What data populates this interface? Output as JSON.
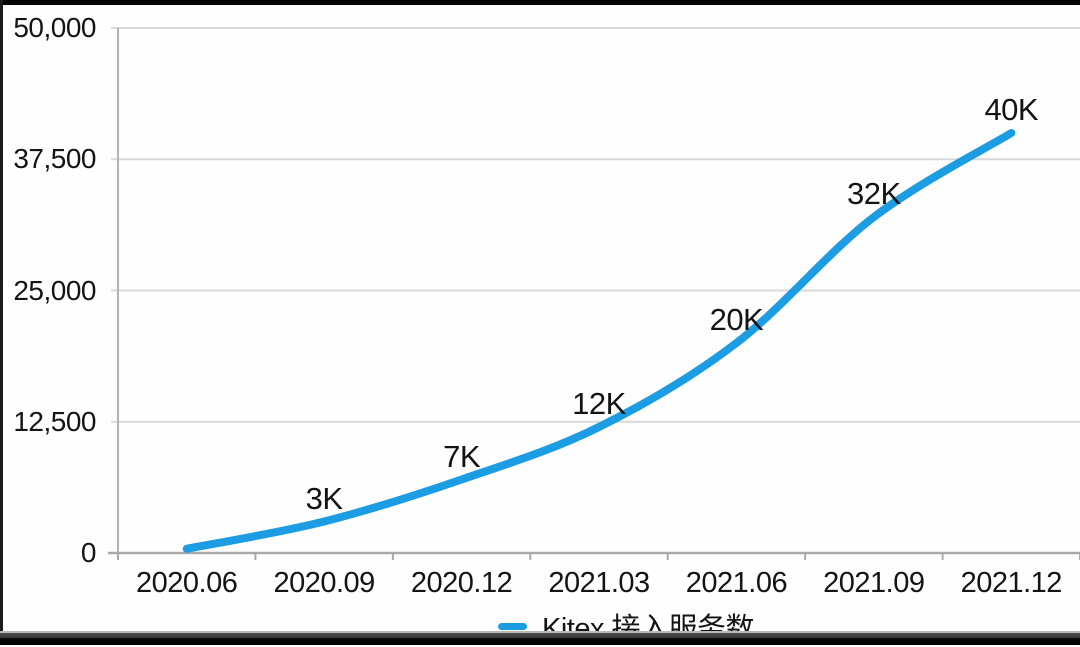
{
  "chart_data": {
    "type": "line",
    "title": "",
    "categories": [
      "2020.06",
      "2020.09",
      "2020.12",
      "2021.03",
      "2021.06",
      "2021.09",
      "2021.12"
    ],
    "series": [
      {
        "name": "Kitex 接入服务数",
        "values": [
          400,
          3000,
          7000,
          12000,
          20000,
          32000,
          40000
        ],
        "point_labels": [
          "",
          "3K",
          "7K",
          "12K",
          "20K",
          "32K",
          "40K"
        ],
        "color": "#1b9ce3"
      }
    ],
    "xlabel": "",
    "ylabel": "",
    "ylim": [
      0,
      50000
    ],
    "yticks": [
      0,
      12500,
      25000,
      37500,
      50000
    ],
    "ytick_labels": [
      "0",
      "12,500",
      "25,000",
      "37,500",
      "50,000"
    ],
    "grid": true,
    "legend_position": "bottom"
  },
  "colors": {
    "line": "#1b9ce3",
    "gridline": "#d9d9d9",
    "axis": "#a9a9a9",
    "text": "#141414",
    "background": "#fefefe",
    "letterbox": "#000000"
  }
}
